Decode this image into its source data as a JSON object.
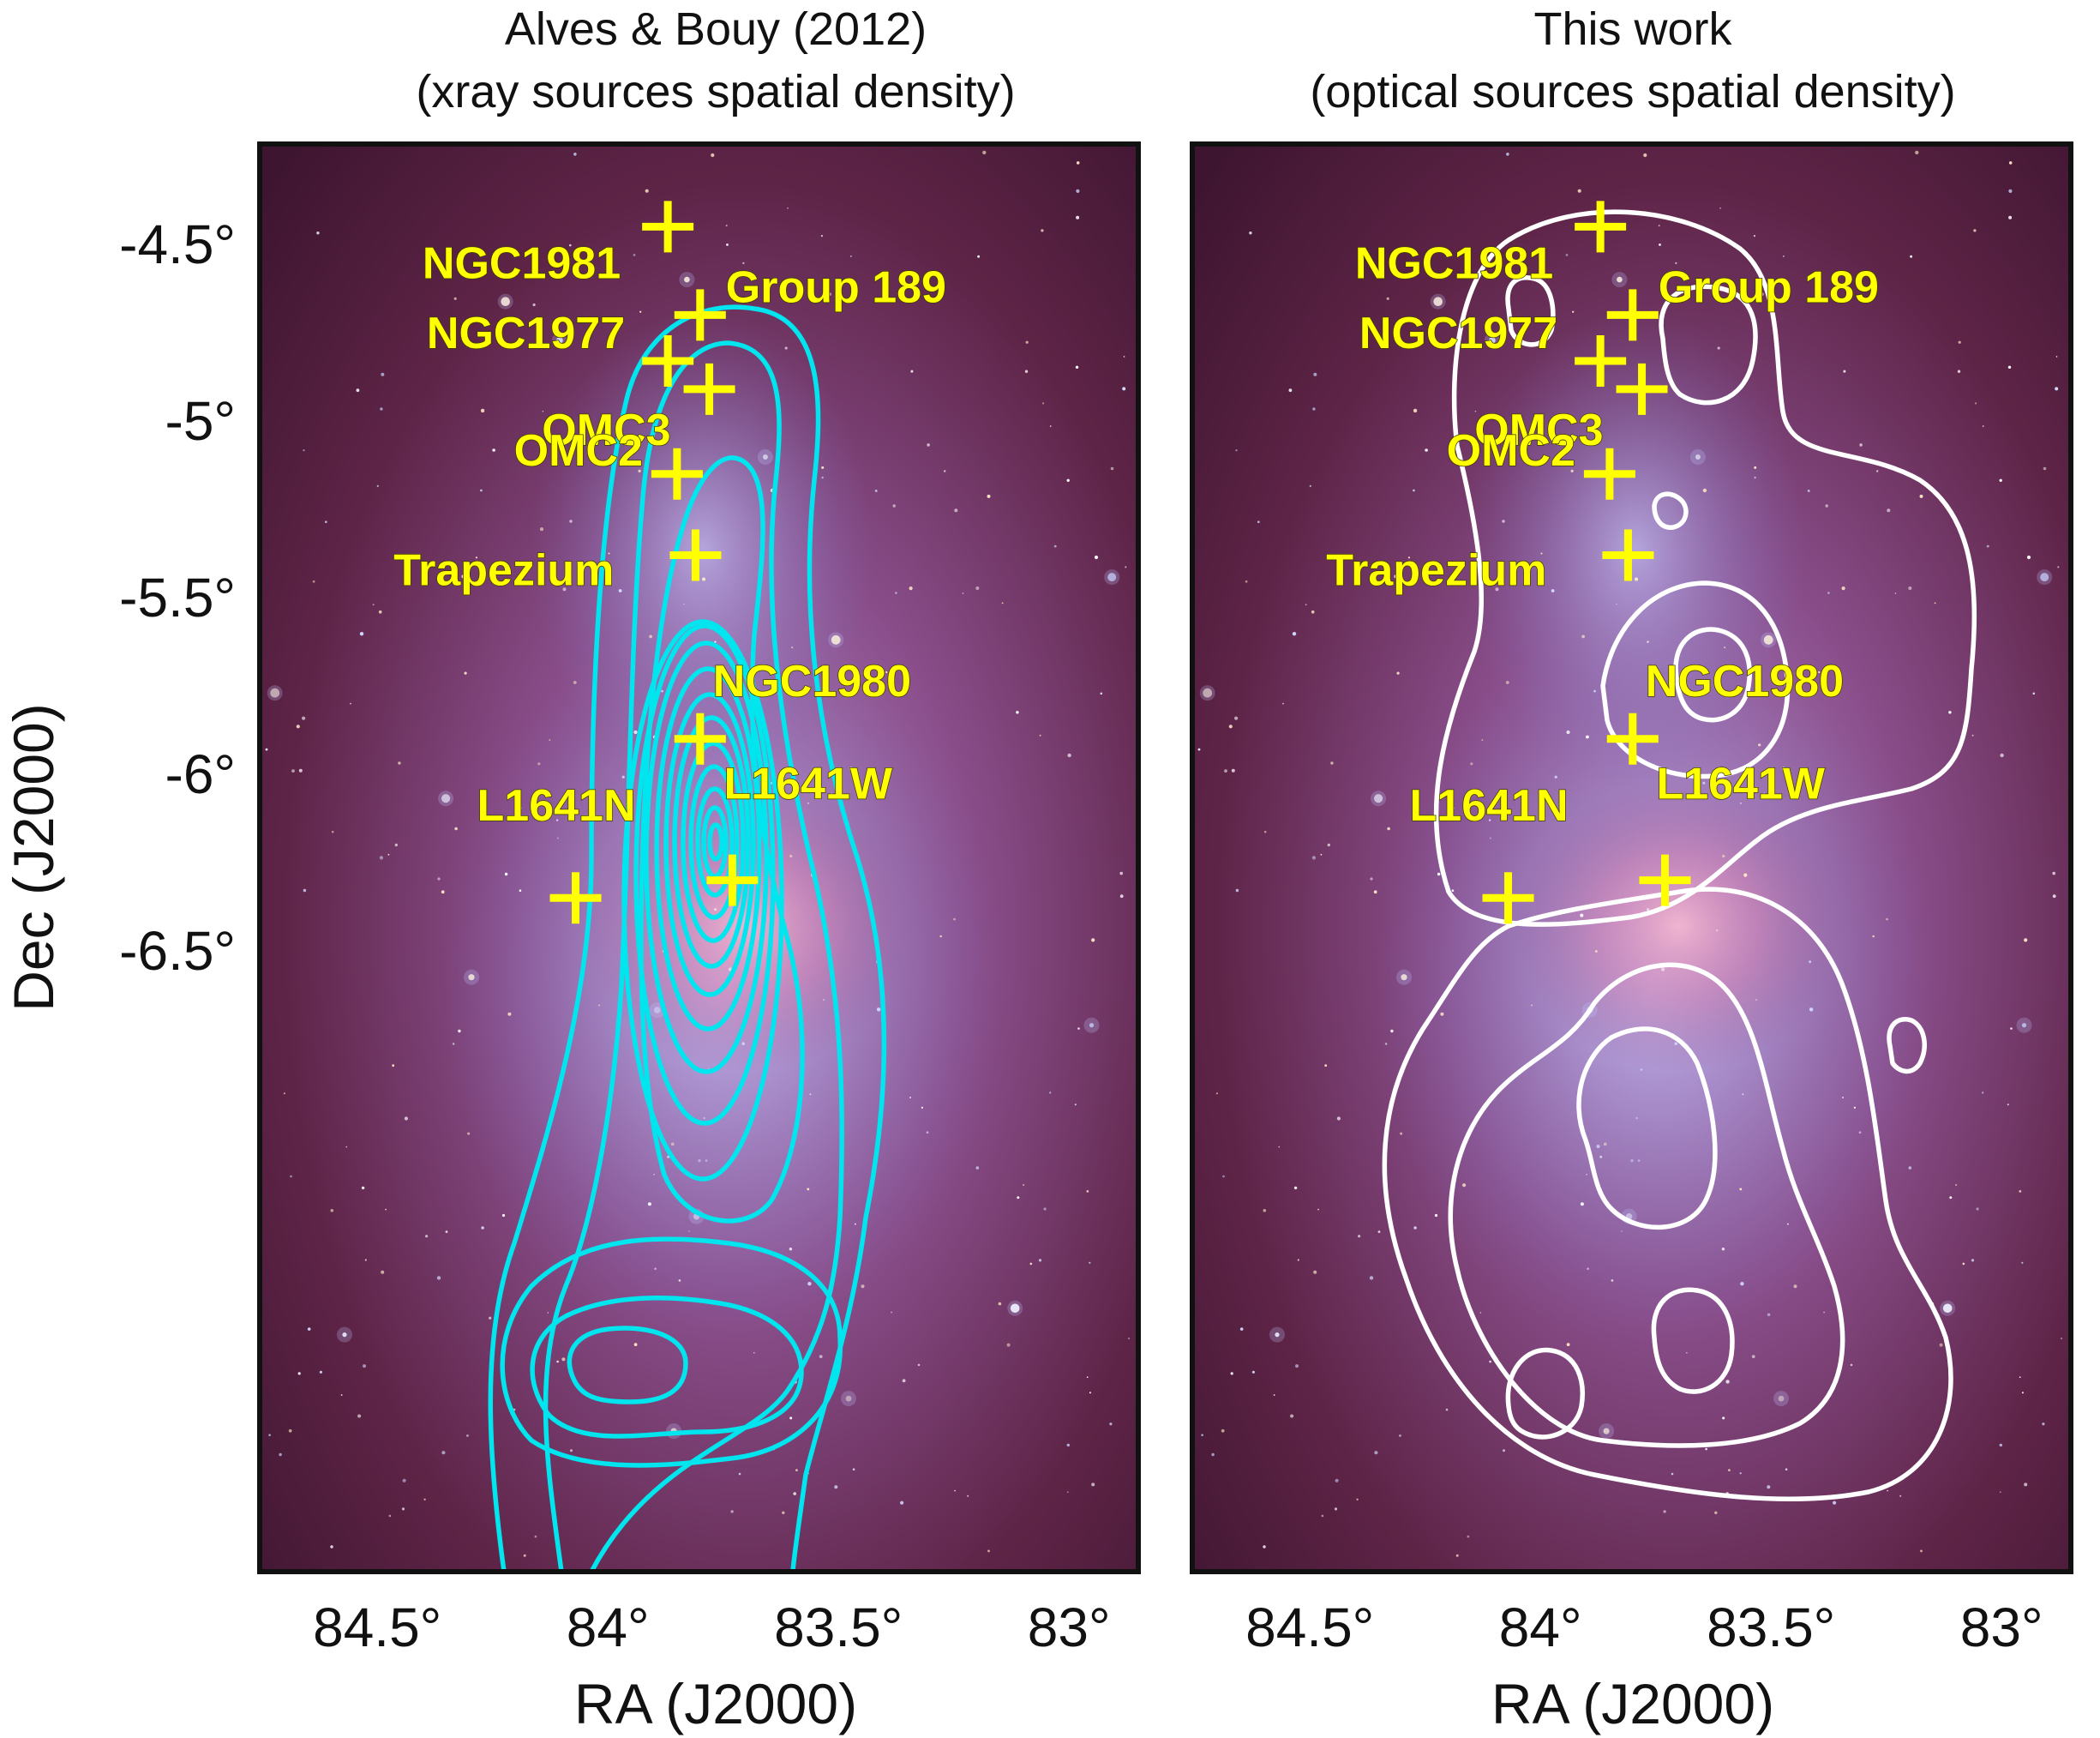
{
  "chart_data": [
    {
      "type": "contour",
      "title": "Alves & Bouy (2012)",
      "subtitle": "(xray sources spatial density)",
      "xlabel": "RA (J2000)",
      "ylabel": "Dec (J2000)",
      "xlim": [
        84.75,
        82.95
      ],
      "ylim": [
        -6.7,
        -4.1
      ],
      "x_ticks": [
        "84.5°",
        "84°",
        "83.5°",
        "83°"
      ],
      "x_tick_values": [
        84.5,
        84.0,
        83.5,
        83.0
      ],
      "y_ticks": [
        "-4.5°",
        "-5°",
        "-5.5°",
        "-6°",
        "-6.5°"
      ],
      "y_tick_values": [
        -4.5,
        -5.0,
        -5.5,
        -6.0,
        -6.5
      ],
      "contour_color": "#00e5ee",
      "background": "Orion nebula color image",
      "markers": [
        {
          "label": "NGC1981",
          "ra": 83.87,
          "dec": -4.45
        },
        {
          "label": "Group 189",
          "ra": 83.8,
          "dec": -4.7
        },
        {
          "label": "NGC1977",
          "ra": 83.87,
          "dec": -4.83
        },
        {
          "label": "OMC3",
          "ra": 83.78,
          "dec": -4.91
        },
        {
          "label": "OMC2",
          "ra": 83.85,
          "dec": -5.15
        },
        {
          "label": "Trapezium",
          "ra": 83.81,
          "dec": -5.38
        },
        {
          "label": "NGC1980",
          "ra": 83.8,
          "dec": -5.9
        },
        {
          "label": "L1641N",
          "ra": 84.07,
          "dec": -6.35
        },
        {
          "label": "L1641W",
          "ra": 83.73,
          "dec": -6.3
        }
      ]
    },
    {
      "type": "contour",
      "title": "This work",
      "subtitle": "(optical sources spatial density)",
      "xlabel": "RA (J2000)",
      "ylabel": "",
      "xlim": [
        84.75,
        82.95
      ],
      "ylim": [
        -6.7,
        -4.1
      ],
      "x_ticks": [
        "84.5°",
        "84°",
        "83.5°",
        "83°"
      ],
      "x_tick_values": [
        84.5,
        84.0,
        83.5,
        83.0
      ],
      "contour_color": "#ffffff",
      "background": "Orion nebula color image",
      "markers": [
        {
          "label": "NGC1981",
          "ra": 83.87,
          "dec": -4.45
        },
        {
          "label": "Group 189",
          "ra": 83.8,
          "dec": -4.7
        },
        {
          "label": "NGC1977",
          "ra": 83.87,
          "dec": -4.83
        },
        {
          "label": "OMC3",
          "ra": 83.78,
          "dec": -4.91
        },
        {
          "label": "OMC2",
          "ra": 83.85,
          "dec": -5.15
        },
        {
          "label": "Trapezium",
          "ra": 83.81,
          "dec": -5.38
        },
        {
          "label": "NGC1980",
          "ra": 83.8,
          "dec": -5.9
        },
        {
          "label": "L1641N",
          "ra": 84.07,
          "dec": -6.35
        },
        {
          "label": "L1641W",
          "ra": 83.73,
          "dec": -6.3
        }
      ]
    }
  ]
}
